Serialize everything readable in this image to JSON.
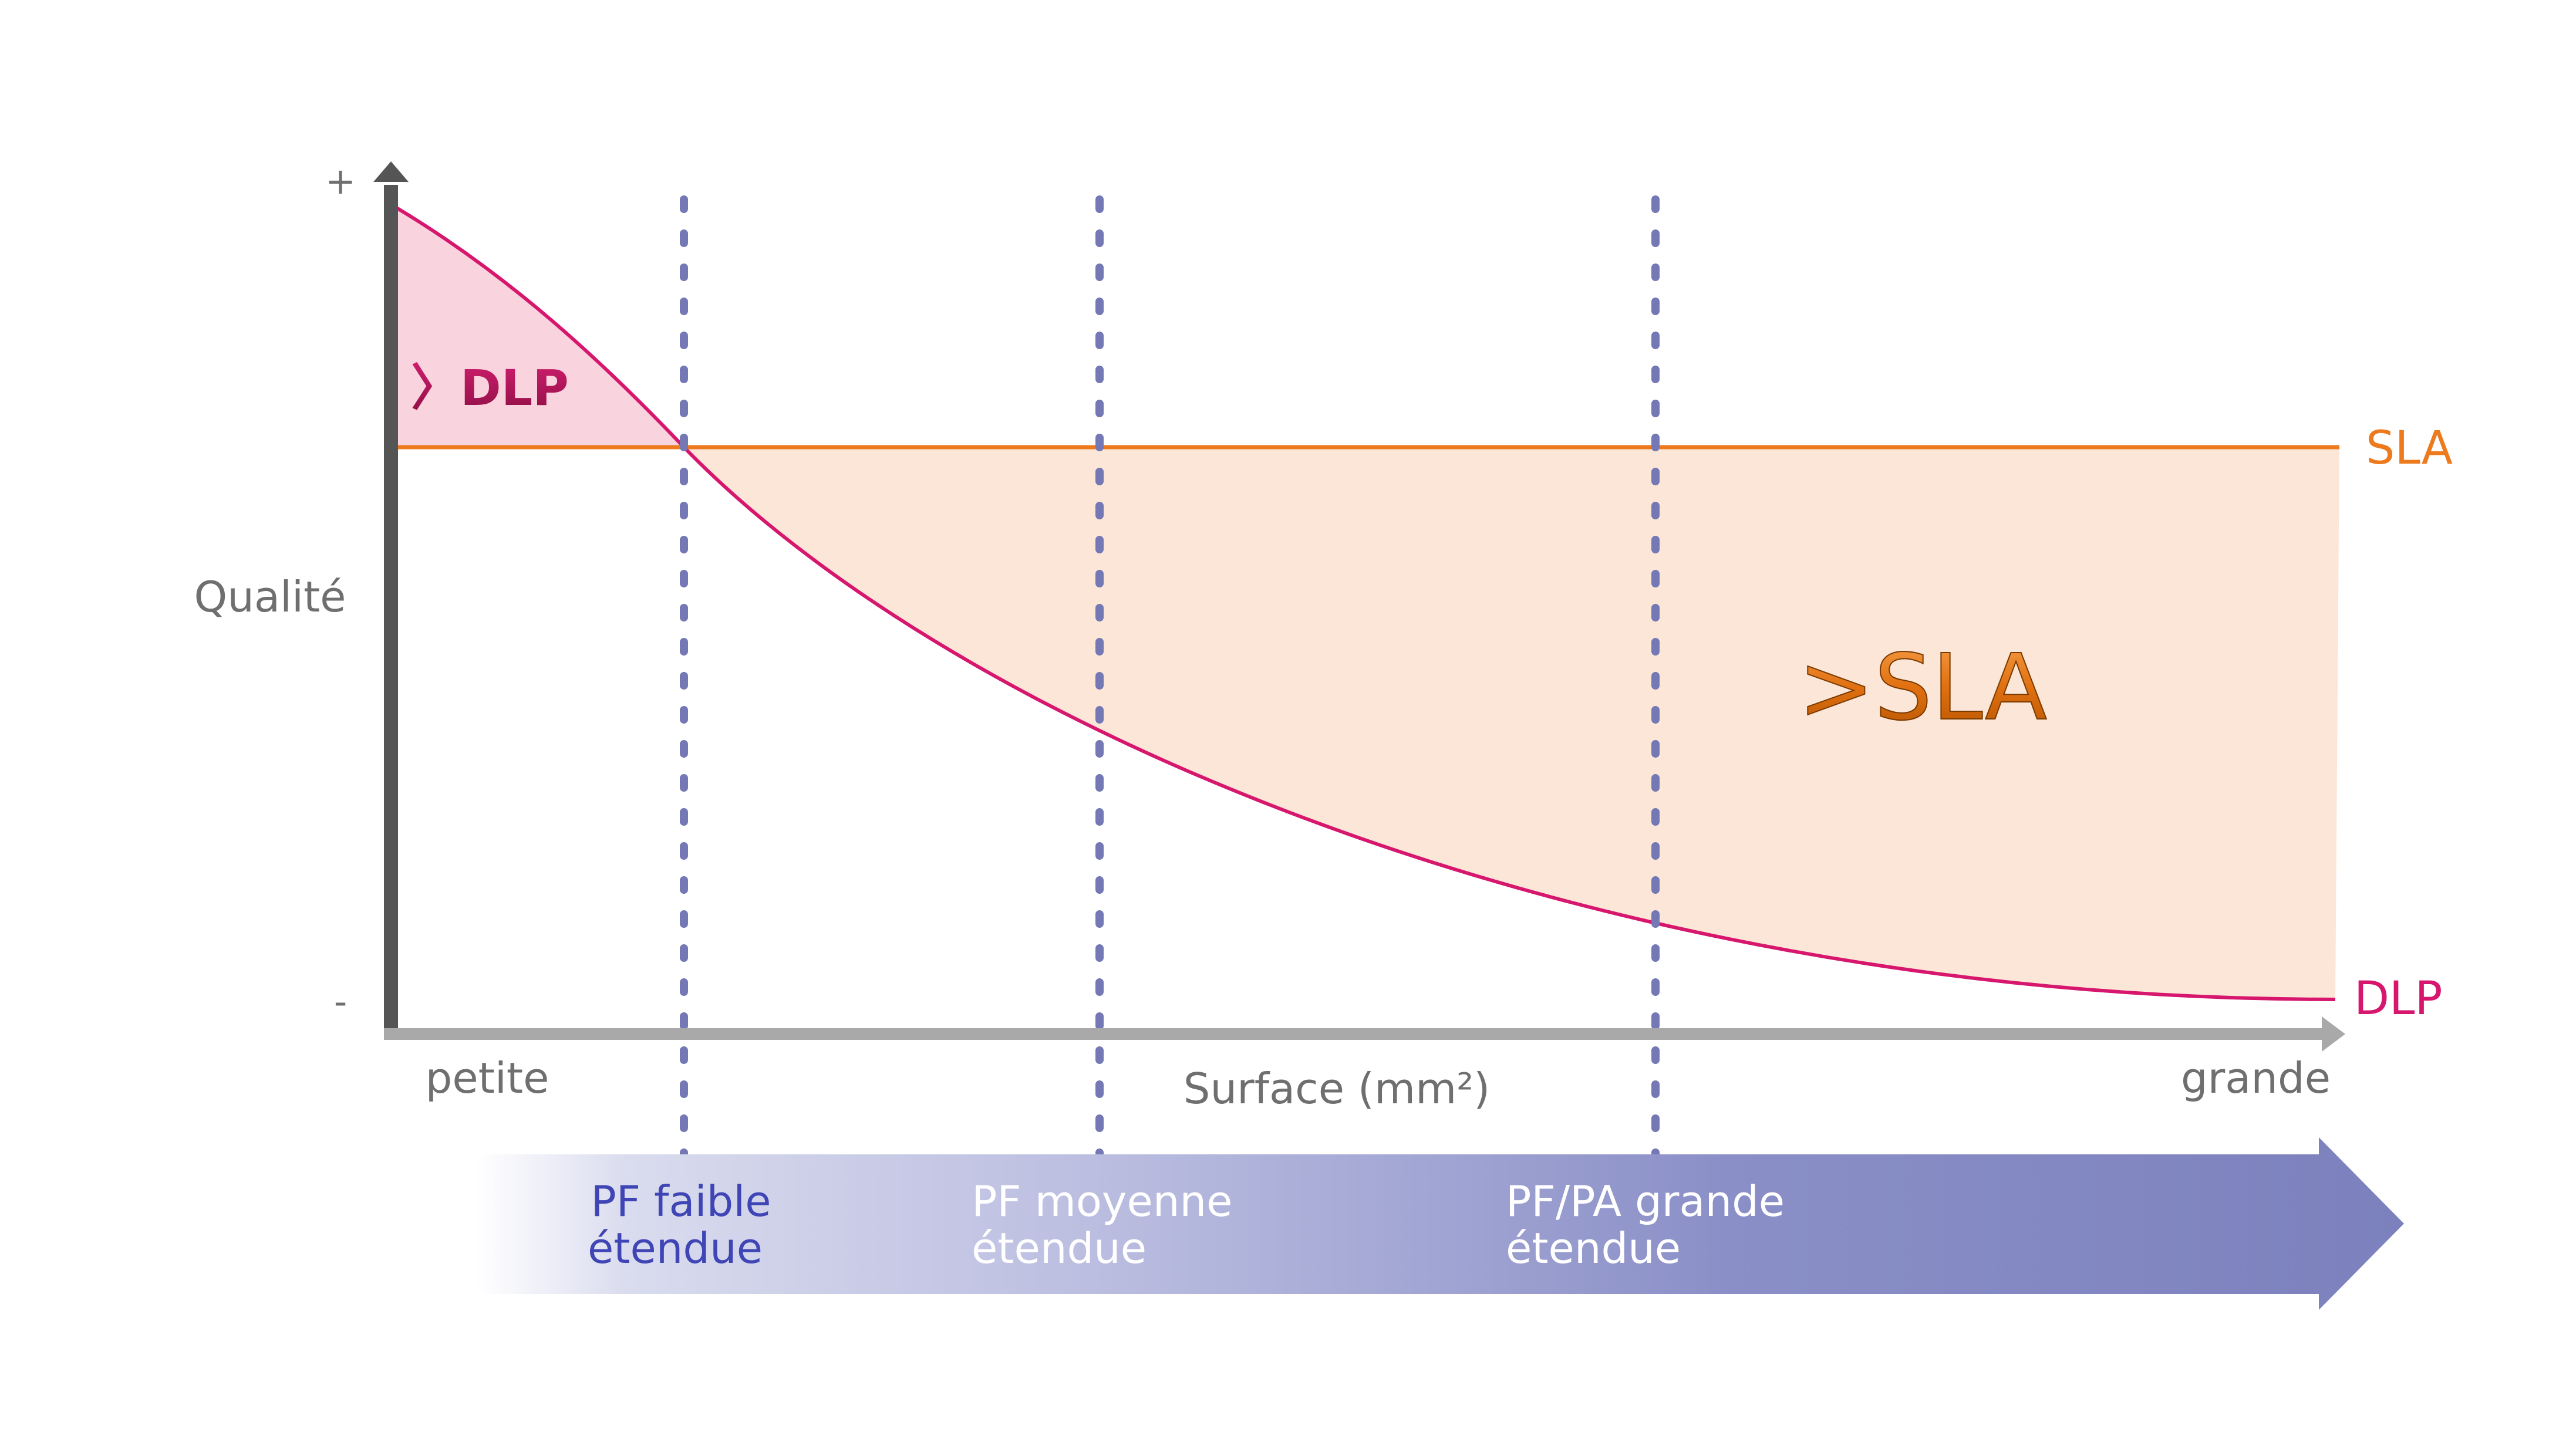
{
  "colors": {
    "background": "#ffffff",
    "sla_line": "#ee7a1e",
    "dlp_line": "#d6176d",
    "sla_region": "#fbe6d7",
    "dlp_region": "#f9d3dd",
    "axis_y": "#555555",
    "axis_x": "#a9a9a9",
    "divider": "#7478b4",
    "arrow": "#7c81bd",
    "arrow_text": "#ffffff",
    "arrow_text_first": "#3f45b5",
    "axis_text": "#6f6f6f",
    "dlp_label_text": "#a81454"
  },
  "y_axis": {
    "label": "Qualité",
    "top_tick": "+",
    "bottom_tick": "-"
  },
  "x_axis": {
    "label": "Surface (mm²)",
    "left_end": "petite",
    "right_end": "grande"
  },
  "series": {
    "sla": {
      "name": "SLA",
      "region_label": ">SLA",
      "relative_level": 0.7
    },
    "dlp": {
      "name": "DLP",
      "region_label": "〉DLP",
      "relative_level_start": 1.0,
      "relative_level_end": 0.04
    }
  },
  "range_arrow": {
    "segments": [
      {
        "line1": "PF faible",
        "line2": "étendue"
      },
      {
        "line1": "PF moyenne",
        "line2": "étendue"
      },
      {
        "line1": "PF/PA grande",
        "line2": "étendue"
      }
    ]
  }
}
